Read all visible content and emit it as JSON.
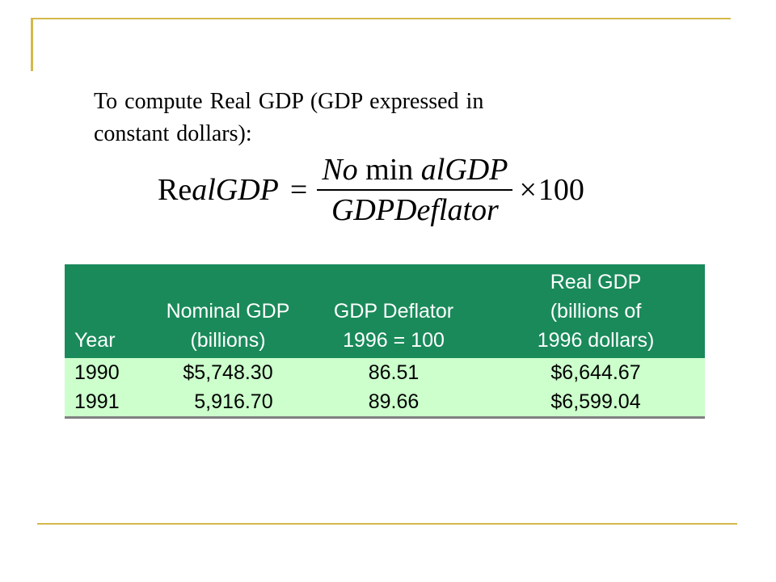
{
  "intro": {
    "line1": "To compute Real GDP (GDP expressed in",
    "line2": "constant dollars):"
  },
  "formula": {
    "lhs_a": "Re",
    "lhs_b": "alGDP",
    "equals": "=",
    "num_a": "No",
    "num_b": " min ",
    "num_c": "alGDP",
    "den": "GDPDeflator",
    "times": "×",
    "factor": "100"
  },
  "table": {
    "headers": {
      "year": [
        "",
        "",
        "Year"
      ],
      "nominal": [
        "",
        "Nominal GDP",
        "(billions)"
      ],
      "deflator": [
        "",
        "GDP Deflator",
        "1996 = 100"
      ],
      "real": [
        "Real GDP",
        "(billions of",
        "1996 dollars)"
      ]
    },
    "rows": [
      {
        "year": "1990",
        "nominal": "$5,748.30",
        "deflator": "86.51",
        "real": "$6,644.67"
      },
      {
        "year": "1991",
        "nominal": "  5,916.70",
        "deflator": "89.66",
        "real": "$6,599.04"
      }
    ]
  },
  "colors": {
    "frame": "#d4b94a",
    "header_bg": "#1a8a5a",
    "row_bg": "#ccffcc"
  }
}
